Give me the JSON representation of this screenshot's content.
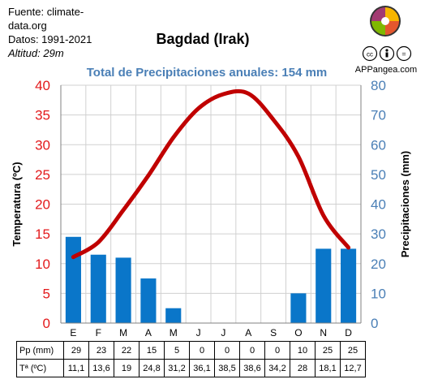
{
  "source": {
    "line1": "Fuente: climate-data.org",
    "line2": "Datos: 1991-2021",
    "line3": "Altitud: 29m"
  },
  "brand": "APPangea.com",
  "colors": {
    "temperature": "#c00000",
    "precipitation": "#0a76c9",
    "left_axis": "#e31a1c",
    "right_axis": "#4a7fb6"
  },
  "table": {
    "pp_label": "Pp (mm)",
    "t_label": "Tª (ºC)",
    "pp_values": [
      "29",
      "23",
      "22",
      "15",
      "5",
      "0",
      "0",
      "0",
      "0",
      "10",
      "25",
      "25"
    ],
    "t_values": [
      "11,1",
      "13,6",
      "19",
      "24,8",
      "31,2",
      "36,1",
      "38,5",
      "38,6",
      "34,2",
      "28",
      "18,1",
      "12,7"
    ]
  },
  "chart_data": {
    "type": "bar+line",
    "title": "Bagdad (Irak)",
    "subtitle": "Total de Precipitaciones anuales: 154 mm",
    "categories": [
      "E",
      "F",
      "M",
      "A",
      "M",
      "J",
      "J",
      "A",
      "S",
      "O",
      "N",
      "D"
    ],
    "ylabel_left": "Temperatura (ºC)",
    "ylabel_right": "Precipitaciones (mm)",
    "ylim_left": [
      0,
      40
    ],
    "ylim_right": [
      0,
      80
    ],
    "yticks_left": [
      0,
      5,
      10,
      15,
      20,
      25,
      30,
      35,
      40
    ],
    "yticks_right": [
      0,
      10,
      20,
      30,
      40,
      50,
      60,
      70,
      80
    ],
    "grid": true,
    "series": [
      {
        "name": "Precipitaciones (mm)",
        "type": "bar",
        "axis": "right",
        "values": [
          29,
          23,
          22,
          15,
          5,
          0,
          0,
          0,
          0,
          10,
          25,
          25
        ]
      },
      {
        "name": "Temperatura (ºC)",
        "type": "line",
        "axis": "left",
        "values": [
          11.1,
          13.6,
          19,
          24.8,
          31.2,
          36.1,
          38.5,
          38.6,
          34.2,
          28,
          18.1,
          12.7
        ]
      }
    ]
  }
}
